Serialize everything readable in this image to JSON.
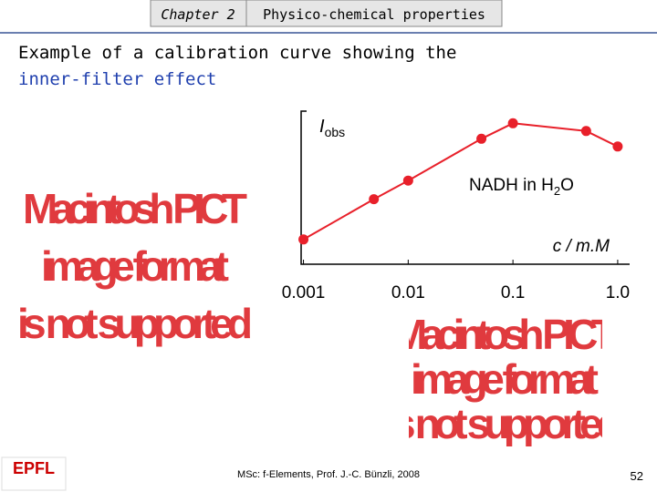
{
  "header": {
    "chapter": "Chapter 2",
    "section": "Physico-chemical properties"
  },
  "title": [
    "Example of a calibration curve showing the",
    "inner-filter effect"
  ],
  "placeholder": [
    "Macintosh PICT",
    "image format",
    "is not supported"
  ],
  "chart_data": {
    "type": "line",
    "y_label": {
      "main": "I",
      "sub": "obs"
    },
    "annotation": {
      "before": "NADH in H",
      "sub": "2",
      "after": "O"
    },
    "x_label": "c / m.M",
    "x": [
      0.001,
      0.0047,
      0.01,
      0.05,
      0.1,
      0.5,
      1.0
    ],
    "series": [
      {
        "color": "#e8202a",
        "values": [
          1.6,
          4.2,
          5.4,
          8.1,
          9.1,
          8.6,
          7.6
        ]
      }
    ],
    "xlim": [
      0.00095,
      1.3
    ],
    "ylim": [
      0,
      10
    ],
    "xscale": "log",
    "xticks": [
      0.001,
      0.01,
      0.1,
      {
        "value": 1,
        "label": "1.0"
      }
    ]
  },
  "footer": {
    "credit": "MSc: f-Elements,  Prof. J.-C. Bünzli, 2008",
    "page": "52",
    "logo": "EPFL"
  }
}
